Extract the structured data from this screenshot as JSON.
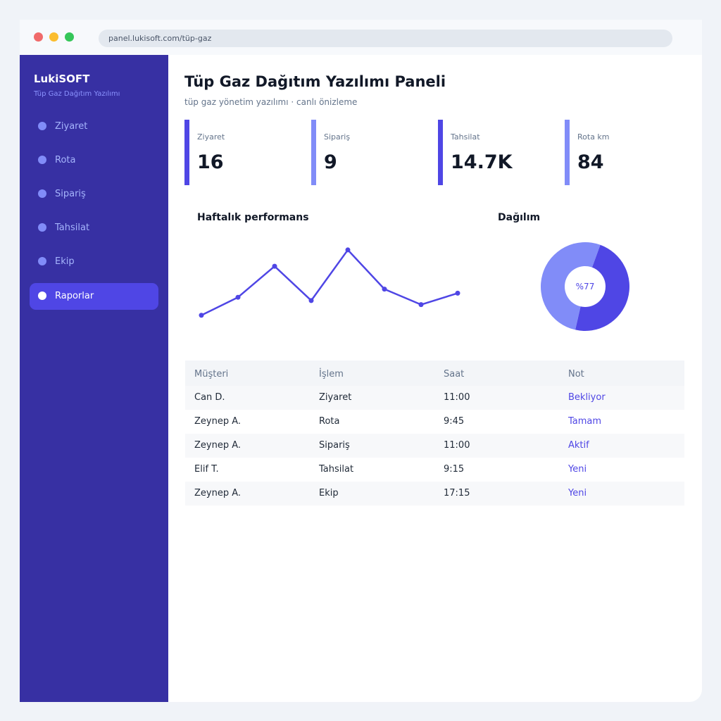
{
  "browser": {
    "url": "panel.lukisoft.com/tüp-gaz"
  },
  "sidebar": {
    "brand": "LukiSOFT",
    "brand_sub": "Tüp Gaz Dağıtım Yazılımı",
    "items": [
      {
        "label": "Ziyaret",
        "active": false
      },
      {
        "label": "Rota",
        "active": false
      },
      {
        "label": "Sipariş",
        "active": false
      },
      {
        "label": "Tahsilat",
        "active": false
      },
      {
        "label": "Ekip",
        "active": false
      },
      {
        "label": "Raporlar",
        "active": true
      }
    ]
  },
  "header": {
    "title": "Tüp Gaz Dağıtım Yazılımı Paneli",
    "subtitle": "tüp gaz yönetim yazılımı · canlı önizleme"
  },
  "stats": [
    {
      "label": "Ziyaret",
      "value": "16",
      "color": "#4f46e5"
    },
    {
      "label": "Sipariş",
      "value": "9",
      "color": "#818cf8"
    },
    {
      "label": "Tahsilat",
      "value": "14.7K",
      "color": "#4f46e5"
    },
    {
      "label": "Rota km",
      "value": "84",
      "color": "#818cf8"
    }
  ],
  "chart_data": [
    {
      "type": "line",
      "title": "Haftalık performans",
      "values": [
        8,
        30,
        68,
        26,
        88,
        40,
        21,
        35
      ],
      "ylim": [
        0,
        100
      ],
      "color": "#4f46e5"
    },
    {
      "type": "pie",
      "title": "Dağılım",
      "center_label": "%77",
      "slices": [
        {
          "value": 48,
          "color": "#4f46e5"
        },
        {
          "value": 52,
          "color": "#818cf8"
        }
      ]
    }
  ],
  "table": {
    "columns": [
      "Müşteri",
      "İşlem",
      "Saat",
      "Not"
    ],
    "rows": [
      [
        "Can D.",
        "Ziyaret",
        "11:00",
        "Bekliyor"
      ],
      [
        "Zeynep A.",
        "Rota",
        "9:45",
        "Tamam"
      ],
      [
        "Zeynep A.",
        "Sipariş",
        "11:00",
        "Aktif"
      ],
      [
        "Elif T.",
        "Tahsilat",
        "9:15",
        "Yeni"
      ],
      [
        "Zeynep A.",
        "Ekip",
        "17:15",
        "Yeni"
      ]
    ]
  },
  "colors": {
    "accent": "#4f46e5",
    "accent_light": "#818cf8",
    "sidebar": "#3730a3"
  }
}
